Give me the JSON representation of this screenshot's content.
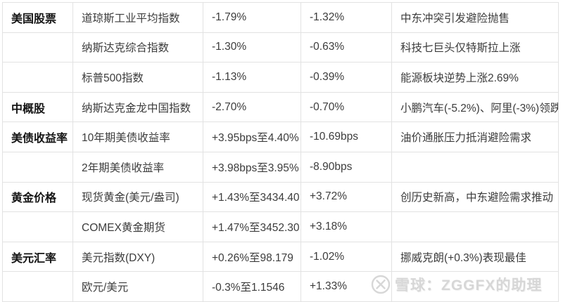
{
  "table": {
    "columns": [
      "category",
      "name",
      "change1",
      "change2",
      "note"
    ],
    "rows": [
      {
        "category": "美国股票",
        "name": "道琼斯工业平均指数",
        "change1": "-1.79%",
        "change2": "-1.32%",
        "note": "中东冲突引发避险抛售"
      },
      {
        "category": "",
        "name": "纳斯达克综合指数",
        "change1": "-1.30%",
        "change2": "-0.63%",
        "note": "科技七巨头仅特斯拉上涨"
      },
      {
        "category": "",
        "name": "标普500指数",
        "change1": "-1.13%",
        "change2": "-0.39%",
        "note": "能源板块逆势上涨2.69%"
      },
      {
        "category": "中概股",
        "name": "纳斯达克金龙中国指数",
        "change1": "-2.70%",
        "change2": "-0.70%",
        "note": "小鹏汽车(-5.2%)、阿里(-3%)领跌"
      },
      {
        "category": "美债收益率",
        "name": "10年期美债收益率",
        "change1": "+3.95bps至4.40%",
        "change2": "-10.69bps",
        "note": "油价通胀压力抵消避险需求"
      },
      {
        "category": "",
        "name": "2年期美债收益率",
        "change1": "+3.98bps至3.95%",
        "change2": "-8.90bps",
        "note": ""
      },
      {
        "category": "黄金价格",
        "name": "现货黄金(美元/盎司)",
        "change1": "+1.43%至3434.40",
        "change2": "+3.72%",
        "note": "创历史新高，中东避险需求推动"
      },
      {
        "category": "",
        "name": "COMEX黄金期货",
        "change1": "+1.47%至3452.30",
        "change2": "+3.18%",
        "note": ""
      },
      {
        "category": "美元汇率",
        "name": "美元指数(DXY)",
        "change1": "+0.26%至98.179",
        "change2": "-1.02%",
        "note": "挪威克朗(+0.3%)表现最佳"
      },
      {
        "category": "",
        "name": "欧元/美元",
        "change1": "-0.3%至1.1546",
        "change2": "+1.33%",
        "note": ""
      }
    ]
  },
  "watermark": {
    "text": "雪球：ZGGFX的助理",
    "logo": "xueqiu-logo",
    "color": "#d7d7d7"
  },
  "colors": {
    "background": "#ffffff",
    "border": "#e2e2e2",
    "text": "#3c3c3c",
    "category_text": "#141414"
  }
}
